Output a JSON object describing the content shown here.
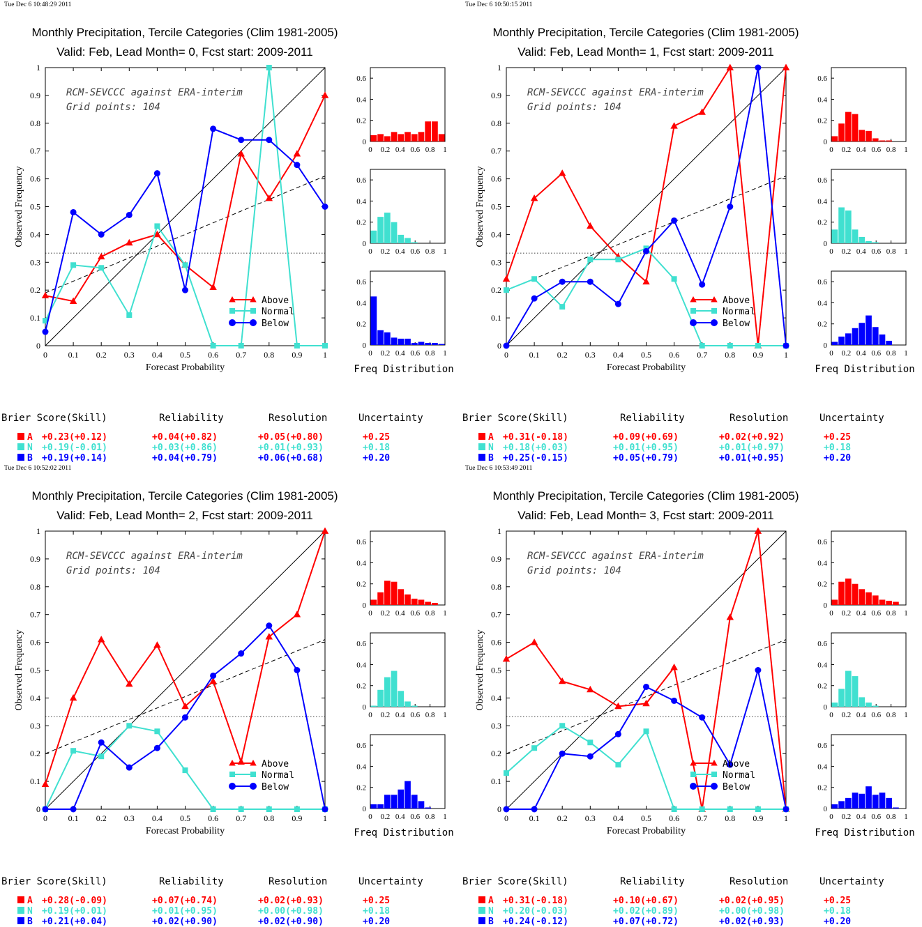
{
  "colors": {
    "above": "#ff0000",
    "normal": "#40e0d0",
    "below": "#0000ff",
    "axis": "#000000"
  },
  "labels": {
    "ylabel": "Observed Frequency",
    "xlabel": "Forecast Probability",
    "freq_label": "Freq Distribution",
    "annot1": "RCM-SEVCCC against ERA-interim",
    "annot2": "Grid points:  104",
    "legend": [
      "Above",
      "Normal",
      "Below"
    ],
    "x_ticks": [
      "0",
      "0.1",
      "0.2",
      "0.3",
      "0.4",
      "0.5",
      "0.6",
      "0.7",
      "0.8",
      "0.9",
      "1"
    ],
    "y_ticks": [
      "0",
      "0.1",
      "0.2",
      "0.3",
      "0.4",
      "0.5",
      "0.6",
      "0.7",
      "0.8",
      "0.9",
      "1"
    ],
    "hist_x_ticks": [
      "0",
      "0.2",
      "0.4",
      "0.6",
      "0.8",
      "1"
    ],
    "hist_y_ticks": [
      "0",
      "0.2",
      "0.4",
      "0.6"
    ],
    "score_headers": [
      "Brier Score(Skill)",
      "Reliability",
      "Resolution",
      "Uncertainty"
    ],
    "score_letters": [
      "A",
      "N",
      "B"
    ]
  },
  "chart_data": [
    {
      "type": "line",
      "timestamp": "Tue Dec  6 10:48:29 2011",
      "title": "Monthly Precipitation, Tercile Categories (Clim 1981-2005)",
      "subtitle": "Valid: Feb, Lead Month= 0, Fcst start: 2009-2011",
      "xlabel": "Forecast Probability",
      "ylabel": "Observed Frequency",
      "xlim": [
        0,
        1
      ],
      "ylim": [
        0,
        1
      ],
      "climatology": 0.333,
      "skill_line": [
        0.19,
        0.61
      ],
      "x": [
        0,
        0.1,
        0.2,
        0.3,
        0.4,
        0.5,
        0.6,
        0.7,
        0.8,
        0.9,
        1
      ],
      "series": [
        {
          "name": "Above",
          "values": [
            0.18,
            0.16,
            0.32,
            0.37,
            0.4,
            0.29,
            0.21,
            0.69,
            0.53,
            0.69,
            0.9
          ]
        },
        {
          "name": "Normal",
          "values": [
            0.09,
            0.29,
            0.28,
            0.11,
            0.43,
            0.29,
            0,
            0,
            1.0,
            0,
            0
          ]
        },
        {
          "name": "Below",
          "values": [
            0.05,
            0.48,
            0.4,
            0.47,
            0.62,
            0.2,
            0.78,
            0.74,
            0.74,
            0.65,
            0.5
          ]
        }
      ],
      "hist": {
        "above": [
          0.06,
          0.07,
          0.05,
          0.09,
          0.07,
          0.09,
          0.07,
          0.09,
          0.19,
          0.19,
          0.07
        ],
        "normal": [
          0.12,
          0.25,
          0.29,
          0.2,
          0.08,
          0.05,
          0.01,
          0,
          0,
          0,
          0
        ],
        "below": [
          0.46,
          0.14,
          0.12,
          0.07,
          0.06,
          0.06,
          0.02,
          0.03,
          0.02,
          0.02,
          0.01
        ]
      },
      "scores": [
        [
          "+0.23(+0.12)",
          "+0.04(+0.82)",
          "+0.05(+0.80)",
          "+0.25"
        ],
        [
          "+0.19(-0.01)",
          "+0.03(+0.86)",
          "+0.01(+0.93)",
          "+0.18"
        ],
        [
          "+0.19(+0.14)",
          "+0.04(+0.79)",
          "+0.06(+0.68)",
          "+0.20"
        ]
      ]
    },
    {
      "type": "line",
      "timestamp": "Tue Dec  6 10:50:15 2011",
      "title": "Monthly Precipitation, Tercile Categories (Clim 1981-2005)",
      "subtitle": "Valid: Feb, Lead Month= 1, Fcst start: 2009-2011",
      "xlabel": "Forecast Probability",
      "ylabel": "Observed Frequency",
      "xlim": [
        0,
        1
      ],
      "ylim": [
        0,
        1
      ],
      "climatology": 0.333,
      "skill_line": [
        0.2,
        0.61
      ],
      "x": [
        0,
        0.1,
        0.2,
        0.3,
        0.4,
        0.5,
        0.6,
        0.7,
        0.8,
        0.9,
        1
      ],
      "series": [
        {
          "name": "Above",
          "values": [
            0.24,
            0.53,
            0.62,
            0.43,
            0.32,
            0.23,
            0.79,
            0.84,
            1.0,
            0,
            1.0
          ]
        },
        {
          "name": "Normal",
          "values": [
            0.2,
            0.24,
            0.14,
            0.31,
            0.31,
            0.35,
            0.24,
            0,
            0,
            0,
            0
          ]
        },
        {
          "name": "Below",
          "values": [
            0,
            0.17,
            0.23,
            0.23,
            0.15,
            0.34,
            0.45,
            0.22,
            0.5,
            1.0,
            0
          ]
        }
      ],
      "hist": {
        "above": [
          0.05,
          0.17,
          0.28,
          0.26,
          0.11,
          0.1,
          0.03,
          0.01,
          0.01,
          0,
          0
        ],
        "normal": [
          0.13,
          0.34,
          0.31,
          0.13,
          0.06,
          0.02,
          0.01,
          0,
          0,
          0,
          0
        ],
        "below": [
          0.03,
          0.08,
          0.11,
          0.16,
          0.21,
          0.28,
          0.17,
          0.1,
          0.04,
          0,
          0
        ]
      },
      "scores": [
        [
          "+0.31(-0.18)",
          "+0.09(+0.69)",
          "+0.02(+0.92)",
          "+0.25"
        ],
        [
          "+0.18(+0.03)",
          "+0.01(+0.95)",
          "+0.01(+0.97)",
          "+0.18"
        ],
        [
          "+0.25(-0.15)",
          "+0.05(+0.79)",
          "+0.01(+0.95)",
          "+0.20"
        ]
      ]
    },
    {
      "type": "line",
      "timestamp": "Tue Dec  6 10:52:02 2011",
      "title": "Monthly Precipitation, Tercile Categories (Clim 1981-2005)",
      "subtitle": "Valid: Feb, Lead Month= 2, Fcst start: 2009-2011",
      "xlabel": "Forecast Probability",
      "ylabel": "Observed Frequency",
      "xlim": [
        0,
        1
      ],
      "ylim": [
        0,
        1
      ],
      "climatology": 0.333,
      "skill_line": [
        0.2,
        0.61
      ],
      "x": [
        0,
        0.1,
        0.2,
        0.3,
        0.4,
        0.5,
        0.6,
        0.7,
        0.8,
        0.9,
        1
      ],
      "series": [
        {
          "name": "Above",
          "values": [
            0.09,
            0.4,
            0.61,
            0.45,
            0.59,
            0.37,
            0.46,
            0.17,
            0.62,
            0.7,
            1.0
          ]
        },
        {
          "name": "Normal",
          "values": [
            0,
            0.21,
            0.19,
            0.3,
            0.28,
            0.14,
            0,
            0,
            0,
            0,
            0
          ]
        },
        {
          "name": "Below",
          "values": [
            0,
            0,
            0.24,
            0.15,
            0.22,
            0.33,
            0.48,
            0.56,
            0.66,
            0.5,
            0
          ]
        }
      ],
      "hist": {
        "above": [
          0.05,
          0.12,
          0.23,
          0.22,
          0.15,
          0.1,
          0.06,
          0.05,
          0.03,
          0.02,
          0
        ],
        "normal": [
          0.01,
          0.16,
          0.28,
          0.34,
          0.15,
          0.05,
          0.01,
          0,
          0,
          0,
          0
        ],
        "below": [
          0.04,
          0.04,
          0.13,
          0.13,
          0.18,
          0.26,
          0.13,
          0.07,
          0.01,
          0,
          0
        ]
      },
      "scores": [
        [
          "+0.28(-0.09)",
          "+0.07(+0.74)",
          "+0.02(+0.93)",
          "+0.25"
        ],
        [
          "+0.19(+0.01)",
          "+0.01(+0.95)",
          "+0.00(+0.98)",
          "+0.18"
        ],
        [
          "+0.21(+0.04)",
          "+0.02(+0.90)",
          "+0.02(+0.90)",
          "+0.20"
        ]
      ]
    },
    {
      "type": "line",
      "timestamp": "Tue Dec  6 10:53:49 2011",
      "title": "Monthly Precipitation, Tercile Categories (Clim 1981-2005)",
      "subtitle": "Valid: Feb, Lead Month= 3, Fcst start: 2009-2011",
      "xlabel": "Forecast Probability",
      "ylabel": "Observed Frequency",
      "xlim": [
        0,
        1
      ],
      "ylim": [
        0,
        1
      ],
      "climatology": 0.333,
      "skill_line": [
        0.2,
        0.61
      ],
      "x": [
        0,
        0.1,
        0.2,
        0.3,
        0.4,
        0.5,
        0.6,
        0.7,
        0.8,
        0.9,
        1
      ],
      "series": [
        {
          "name": "Above",
          "values": [
            0.54,
            0.6,
            0.46,
            0.43,
            0.37,
            0.38,
            0.51,
            0,
            0.69,
            1.0,
            0
          ]
        },
        {
          "name": "Normal",
          "values": [
            0.13,
            0.22,
            0.3,
            0.24,
            0.16,
            0.28,
            0,
            0,
            0,
            0,
            0
          ]
        },
        {
          "name": "Below",
          "values": [
            0,
            0,
            0.2,
            0.19,
            0.27,
            0.44,
            0.39,
            0.33,
            0.16,
            0.5,
            0
          ]
        }
      ],
      "hist": {
        "above": [
          0.05,
          0.22,
          0.25,
          0.2,
          0.15,
          0.12,
          0.09,
          0.05,
          0.04,
          0.03,
          0
        ],
        "normal": [
          0.04,
          0.17,
          0.34,
          0.29,
          0.09,
          0.04,
          0.01,
          0,
          0,
          0,
          0
        ],
        "below": [
          0.04,
          0.07,
          0.1,
          0.15,
          0.14,
          0.21,
          0.13,
          0.15,
          0.1,
          0.01,
          0
        ]
      },
      "scores": [
        [
          "+0.31(-0.18)",
          "+0.10(+0.67)",
          "+0.02(+0.95)",
          "+0.25"
        ],
        [
          "+0.20(-0.03)",
          "+0.02(+0.89)",
          "+0.00(+0.98)",
          "+0.18"
        ],
        [
          "+0.24(-0.12)",
          "+0.07(+0.72)",
          "+0.02(+0.93)",
          "+0.20"
        ]
      ]
    }
  ]
}
